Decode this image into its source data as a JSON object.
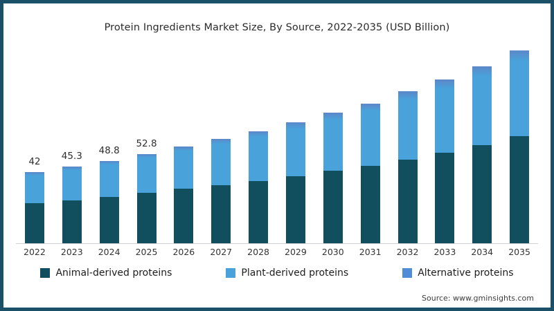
{
  "title": "Protein Ingredients Market Size, By Source, 2022-2035 (USD Billion)",
  "source": "Source: www.gminsights.com",
  "frame_border_color": "#1a5168",
  "legend": [
    {
      "label": "Animal-derived proteins",
      "color": "#114e5e"
    },
    {
      "label": "Plant-derived proteins",
      "color": "#49a2da"
    },
    {
      "label": "Alternative proteins",
      "color": "#4f8ed6"
    }
  ],
  "chart_data": {
    "type": "bar",
    "stacked": true,
    "title": "Protein Ingredients Market Size, By Source, 2022-2035 (USD Billion)",
    "xlabel": "",
    "ylabel": "USD Billion",
    "ylim": [
      0,
      120
    ],
    "grid": false,
    "legend_position": "bottom",
    "categories": [
      "2022",
      "2023",
      "2024",
      "2025",
      "2026",
      "2027",
      "2028",
      "2029",
      "2030",
      "2031",
      "2032",
      "2033",
      "2034",
      "2035"
    ],
    "series": [
      {
        "name": "Animal-derived proteins",
        "color": "#114e5e",
        "values": [
          23.5,
          25.5,
          27.4,
          29.7,
          32.1,
          34.3,
          36.9,
          39.7,
          43.0,
          45.9,
          49.5,
          53.5,
          58.1,
          63.4
        ]
      },
      {
        "name": "Plant-derived proteins",
        "color": "#49a2da",
        "values": [
          16.5,
          17.7,
          19.2,
          20.8,
          22.6,
          24.5,
          26.0,
          27.9,
          30.2,
          32.3,
          35.3,
          38.1,
          40.7,
          44.4
        ]
      },
      {
        "name": "Alternative proteins",
        "color": "#4f8ed6",
        "values": [
          2.0,
          2.1,
          2.2,
          2.3,
          2.5,
          3.0,
          3.4,
          3.7,
          4.0,
          4.4,
          4.9,
          5.3,
          5.8,
          6.3
        ]
      }
    ],
    "totals": [
      42.0,
      45.3,
      48.8,
      52.8,
      57.2,
      61.8,
      66.3,
      71.3,
      77.2,
      82.6,
      89.7,
      96.9,
      104.6,
      114.1
    ],
    "total_labels": [
      "42",
      "45.3",
      "48.8",
      "52.8",
      "",
      "",
      "",
      "",
      "",
      "",
      "",
      "",
      "",
      ""
    ]
  }
}
